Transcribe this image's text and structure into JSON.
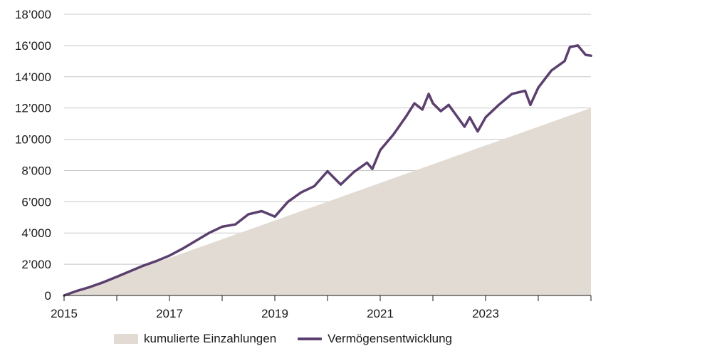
{
  "chart_data": {
    "type": "area",
    "title": "",
    "xlabel": "",
    "ylabel": "",
    "xlim": [
      2015,
      2025
    ],
    "ylim": [
      0,
      18000
    ],
    "x_ticks": [
      2015,
      2017,
      2019,
      2021,
      2023
    ],
    "x_tick_labels": [
      "2015",
      "2017",
      "2019",
      "2021",
      "2023"
    ],
    "y_ticks": [
      0,
      2000,
      4000,
      6000,
      8000,
      10000,
      12000,
      14000,
      16000,
      18000
    ],
    "y_tick_labels": [
      "0",
      "2’000",
      "4’000",
      "6’000",
      "8’000",
      "10’000",
      "12’000",
      "14’000",
      "16’000",
      "18’000"
    ],
    "grid": "horizontal",
    "legend_position": "bottom",
    "series": [
      {
        "name": "kumulierte Einzahlungen",
        "type": "area",
        "color": "#e2dbd3",
        "x": [
          2015.0,
          2025.0
        ],
        "values": [
          0,
          12000
        ]
      },
      {
        "name": "Vermögensentwicklung",
        "type": "line",
        "color": "#5b3f6e",
        "x": [
          2015.0,
          2015.25,
          2015.5,
          2015.75,
          2016.0,
          2016.25,
          2016.5,
          2016.75,
          2017.0,
          2017.25,
          2017.5,
          2017.75,
          2018.0,
          2018.25,
          2018.5,
          2018.75,
          2019.0,
          2019.25,
          2019.5,
          2019.75,
          2020.0,
          2020.25,
          2020.5,
          2020.75,
          2020.85,
          2021.0,
          2021.25,
          2021.5,
          2021.65,
          2021.8,
          2021.92,
          2022.0,
          2022.15,
          2022.3,
          2022.45,
          2022.6,
          2022.7,
          2022.85,
          2023.0,
          2023.25,
          2023.5,
          2023.75,
          2023.85,
          2024.0,
          2024.25,
          2024.5,
          2024.6,
          2024.75,
          2024.9,
          2025.0
        ],
        "values": [
          0,
          300,
          550,
          850,
          1200,
          1550,
          1900,
          2200,
          2550,
          3000,
          3500,
          4000,
          4400,
          4550,
          5200,
          5400,
          5050,
          6000,
          6600,
          7000,
          7950,
          7100,
          7900,
          8500,
          8100,
          9300,
          10300,
          11500,
          12300,
          11900,
          12900,
          12300,
          11800,
          12200,
          11500,
          10800,
          11400,
          10500,
          11400,
          12200,
          12900,
          13100,
          12200,
          13300,
          14400,
          15000,
          15900,
          16000,
          15400,
          15350
        ]
      }
    ]
  }
}
